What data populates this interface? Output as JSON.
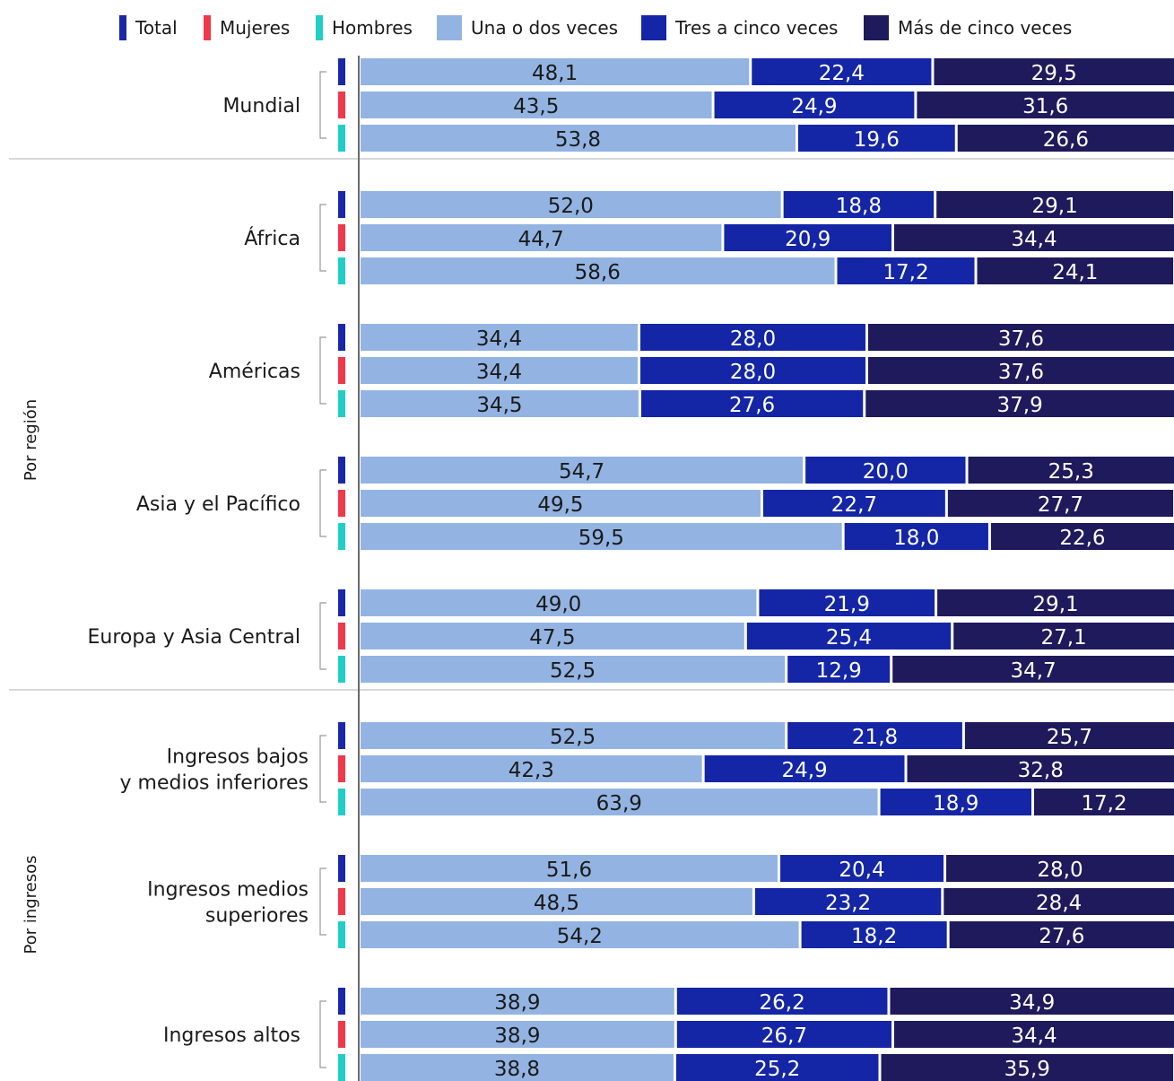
{
  "legend": {
    "sexes": [
      {
        "key": "total",
        "label": "Total",
        "color": "#1a28a8"
      },
      {
        "key": "mujeres",
        "label": "Mujeres",
        "color": "#f0384b"
      },
      {
        "key": "hombres",
        "label": "Hombres",
        "color": "#1fcfc6"
      }
    ],
    "frequency": [
      {
        "key": "una_o_dos",
        "label": "Una o dos veces",
        "color": "#93b4e2"
      },
      {
        "key": "tres_a_cinco",
        "label": "Tres a cinco veces",
        "color": "#1426a6"
      },
      {
        "key": "mas_de_cinco",
        "label": "Más de cinco veces",
        "color": "#1f1a5c"
      }
    ]
  },
  "chart_data": {
    "type": "bar",
    "orientation": "horizontal",
    "stacked": true,
    "xlim": [
      0,
      100
    ],
    "series_names": [
      "Una o dos veces",
      "Tres a cinco veces",
      "Más de cinco veces"
    ],
    "groups": [
      {
        "label": "",
        "categories": [
          {
            "label": [
              "Mundial"
            ],
            "rows": [
              {
                "sex": "total",
                "values": [
                  48.1,
                  22.4,
                  29.5
                ],
                "labels": [
                  "48,1",
                  "22,4",
                  "29,5"
                ]
              },
              {
                "sex": "mujeres",
                "values": [
                  43.5,
                  24.9,
                  31.6
                ],
                "labels": [
                  "43,5",
                  "24,9",
                  "31,6"
                ]
              },
              {
                "sex": "hombres",
                "values": [
                  53.8,
                  19.6,
                  26.6
                ],
                "labels": [
                  "53,8",
                  "19,6",
                  "26,6"
                ]
              }
            ]
          }
        ]
      },
      {
        "label": "Por región",
        "categories": [
          {
            "label": [
              "África"
            ],
            "rows": [
              {
                "sex": "total",
                "values": [
                  52.0,
                  18.8,
                  29.1
                ],
                "labels": [
                  "52,0",
                  "18,8",
                  "29,1"
                ]
              },
              {
                "sex": "mujeres",
                "values": [
                  44.7,
                  20.9,
                  34.4
                ],
                "labels": [
                  "44,7",
                  "20,9",
                  "34,4"
                ]
              },
              {
                "sex": "hombres",
                "values": [
                  58.6,
                  17.2,
                  24.1
                ],
                "labels": [
                  "58,6",
                  "17,2",
                  "24,1"
                ]
              }
            ]
          },
          {
            "label": [
              "Américas"
            ],
            "rows": [
              {
                "sex": "total",
                "values": [
                  34.4,
                  28.0,
                  37.6
                ],
                "labels": [
                  "34,4",
                  "28,0",
                  "37,6"
                ]
              },
              {
                "sex": "mujeres",
                "values": [
                  34.4,
                  28.0,
                  37.6
                ],
                "labels": [
                  "34,4",
                  "28,0",
                  "37,6"
                ]
              },
              {
                "sex": "hombres",
                "values": [
                  34.5,
                  27.6,
                  37.9
                ],
                "labels": [
                  "34,5",
                  "27,6",
                  "37,9"
                ]
              }
            ]
          },
          {
            "label": [
              "Asia y el Pacífico"
            ],
            "rows": [
              {
                "sex": "total",
                "values": [
                  54.7,
                  20.0,
                  25.3
                ],
                "labels": [
                  "54,7",
                  "20,0",
                  "25,3"
                ]
              },
              {
                "sex": "mujeres",
                "values": [
                  49.5,
                  22.7,
                  27.7
                ],
                "labels": [
                  "49,5",
                  "22,7",
                  "27,7"
                ]
              },
              {
                "sex": "hombres",
                "values": [
                  59.5,
                  18.0,
                  22.6
                ],
                "labels": [
                  "59,5",
                  "18,0",
                  "22,6"
                ]
              }
            ]
          },
          {
            "label": [
              "Europa y Asia Central"
            ],
            "rows": [
              {
                "sex": "total",
                "values": [
                  49.0,
                  21.9,
                  29.1
                ],
                "labels": [
                  "49,0",
                  "21,9",
                  "29,1"
                ]
              },
              {
                "sex": "mujeres",
                "values": [
                  47.5,
                  25.4,
                  27.1
                ],
                "labels": [
                  "47,5",
                  "25,4",
                  "27,1"
                ]
              },
              {
                "sex": "hombres",
                "values": [
                  52.5,
                  12.9,
                  34.7
                ],
                "labels": [
                  "52,5",
                  "12,9",
                  "34,7"
                ]
              }
            ]
          }
        ]
      },
      {
        "label": "Por ingresos",
        "categories": [
          {
            "label": [
              "Ingresos bajos",
              "y medios inferiores"
            ],
            "rows": [
              {
                "sex": "total",
                "values": [
                  52.5,
                  21.8,
                  25.7
                ],
                "labels": [
                  "52,5",
                  "21,8",
                  "25,7"
                ]
              },
              {
                "sex": "mujeres",
                "values": [
                  42.3,
                  24.9,
                  32.8
                ],
                "labels": [
                  "42,3",
                  "24,9",
                  "32,8"
                ]
              },
              {
                "sex": "hombres",
                "values": [
                  63.9,
                  18.9,
                  17.2
                ],
                "labels": [
                  "63,9",
                  "18,9",
                  "17,2"
                ]
              }
            ]
          },
          {
            "label": [
              "Ingresos medios",
              "superiores"
            ],
            "rows": [
              {
                "sex": "total",
                "values": [
                  51.6,
                  20.4,
                  28.0
                ],
                "labels": [
                  "51,6",
                  "20,4",
                  "28,0"
                ]
              },
              {
                "sex": "mujeres",
                "values": [
                  48.5,
                  23.2,
                  28.4
                ],
                "labels": [
                  "48,5",
                  "23,2",
                  "28,4"
                ]
              },
              {
                "sex": "hombres",
                "values": [
                  54.2,
                  18.2,
                  27.6
                ],
                "labels": [
                  "54,2",
                  "18,2",
                  "27,6"
                ]
              }
            ]
          },
          {
            "label": [
              "Ingresos altos"
            ],
            "rows": [
              {
                "sex": "total",
                "values": [
                  38.9,
                  26.2,
                  34.9
                ],
                "labels": [
                  "38,9",
                  "26,2",
                  "34,9"
                ]
              },
              {
                "sex": "mujeres",
                "values": [
                  38.9,
                  26.7,
                  34.4
                ],
                "labels": [
                  "38,9",
                  "26,7",
                  "34,4"
                ]
              },
              {
                "sex": "hombres",
                "values": [
                  38.8,
                  25.2,
                  35.9
                ],
                "labels": [
                  "38,8",
                  "25,2",
                  "35,9"
                ]
              }
            ]
          }
        ]
      }
    ]
  }
}
